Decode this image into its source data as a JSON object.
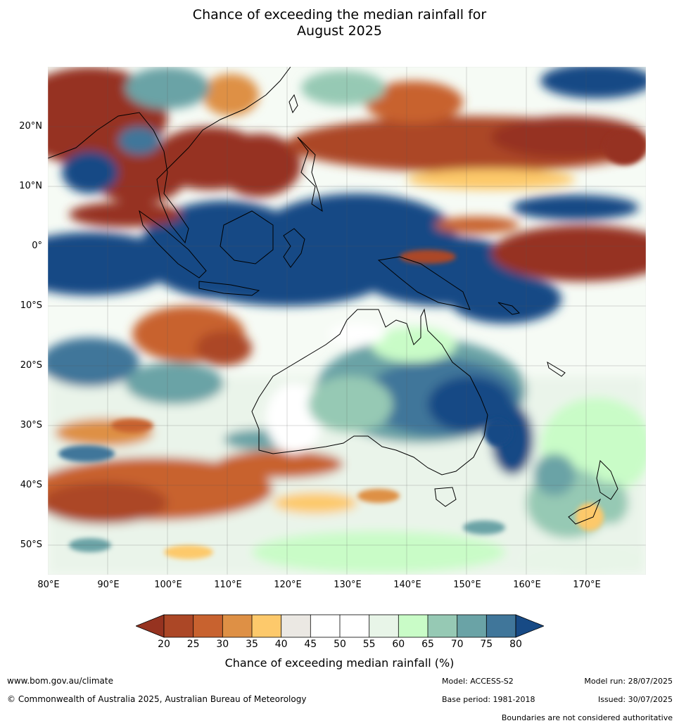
{
  "title_line1": "Chance of exceeding the median rainfall for",
  "title_line2": "August 2025",
  "map": {
    "lon_range": [
      80,
      180
    ],
    "lat_range": [
      -55,
      30
    ],
    "lat_ticks": [
      "20°N",
      "10°N",
      "0°",
      "10°S",
      "20°S",
      "30°S",
      "40°S",
      "50°S"
    ],
    "lon_ticks": [
      "80°E",
      "90°E",
      "100°E",
      "110°E",
      "120°E",
      "130°E",
      "140°E",
      "150°E",
      "160°E",
      "170°E"
    ],
    "colors": {
      "20": "#963320",
      "25": "#ac4726",
      "30": "#c8622f",
      "35": "#de9045",
      "40": "#fdc96b",
      "45": "#ebe8e3",
      "50": "#ffffff",
      "55": "#ffffff",
      "60": "#e8f5e8",
      "65": "#c9fcc7",
      "70": "#96c9b4",
      "75": "#6aa3a6",
      "80": "#40769a",
      "over": "#174a85"
    }
  },
  "colorbar": {
    "ticks": [
      "20",
      "25",
      "30",
      "35",
      "40",
      "45",
      "50",
      "55",
      "60",
      "65",
      "70",
      "75",
      "80"
    ],
    "label": "Chance of exceeding median rainfall (%)"
  },
  "footer": {
    "website": "www.bom.gov.au/climate",
    "copyright": "© Commonwealth of Australia 2025, Australian Bureau of Meteorology",
    "model": "Model: ACCESS-S2",
    "model_run": "Model run: 28/07/2025",
    "base_period": "Base period: 1981-2018",
    "issued": "Issued: 30/07/2025",
    "boundaries": "Boundaries are not considered authoritative"
  }
}
